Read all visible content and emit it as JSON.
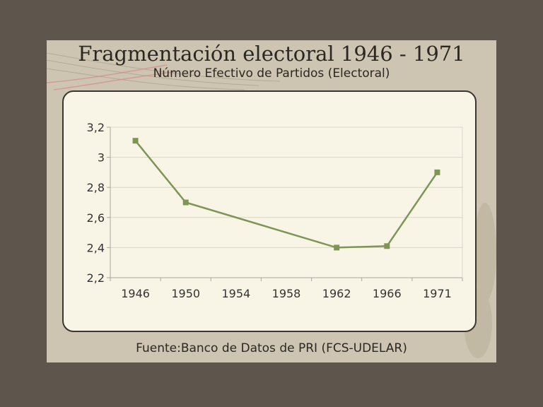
{
  "slide": {
    "title": "Fragmentación electoral 1946 - 1971",
    "subtitle": "Número Efectivo de Partidos (Electoral)",
    "source": "Fuente:Banco de Datos de PRI (FCS-UDELAR)"
  },
  "colors": {
    "background": "#5e554d",
    "slide": "#cdc5b1",
    "panel": "#f8f5e6",
    "series": "#7e9556",
    "grid": "#d8d6c9"
  },
  "chart_data": {
    "type": "line",
    "categories": [
      "1946",
      "1950",
      "1954",
      "1958",
      "1962",
      "1966",
      "1971"
    ],
    "series": [
      {
        "values": [
          3.11,
          2.7,
          null,
          null,
          2.4,
          2.41,
          2.9
        ]
      }
    ],
    "yticks": [
      "2,2",
      "2,4",
      "2,6",
      "2,8",
      "3",
      "3,2"
    ],
    "ylim": [
      2.2,
      3.2
    ],
    "grid": true,
    "legend": "none"
  }
}
